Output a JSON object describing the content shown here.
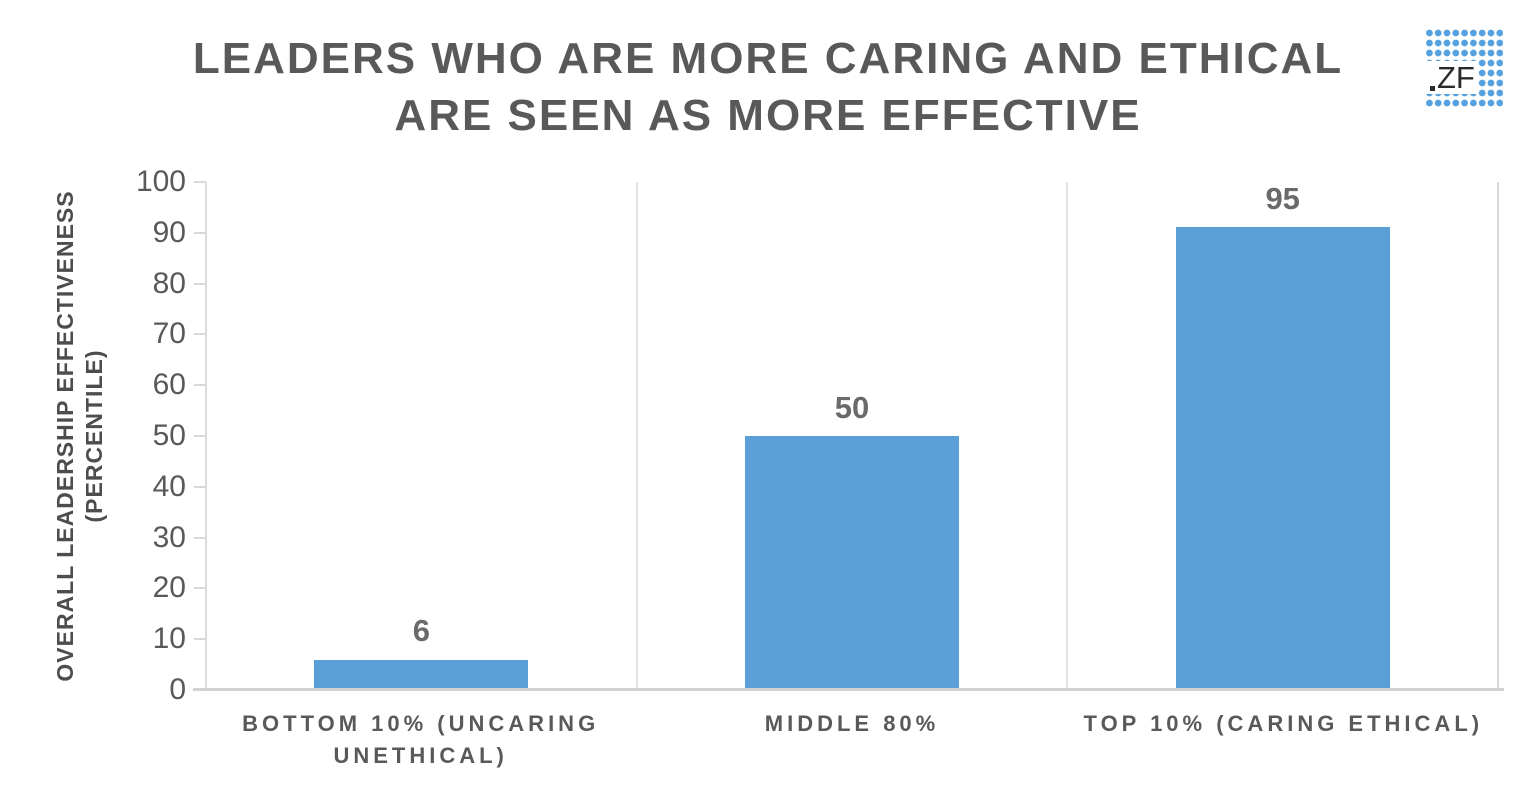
{
  "title": {
    "line1": "LEADERS WHO ARE MORE CARING AND ETHICAL",
    "line2": "ARE SEEN AS MORE EFFECTIVE"
  },
  "logo": {
    "text": "ZF",
    "dot_color": "#55A0DF"
  },
  "y_axis": {
    "title_line1": "OVERALL LEADERSHIP EFFECTIVENESS",
    "title_line2": "(PERCENTILE)"
  },
  "chart_data": {
    "type": "bar",
    "title": "LEADERS WHO ARE MORE CARING AND ETHICAL ARE SEEN AS MORE EFFECTIVE",
    "categories": [
      "BOTTOM 10% (UNCARING UNETHICAL)",
      "MIDDLE 80%",
      "TOP 10% (CARING ETHICAL)"
    ],
    "values": [
      6,
      50,
      95
    ],
    "data_labels": [
      "6",
      "50",
      "95"
    ],
    "xlabel": "",
    "ylabel": "OVERALL LEADERSHIP EFFECTIVENESS (PERCENTILE)",
    "ylim": [
      0,
      100
    ],
    "yticks": [
      "100",
      "90",
      "80",
      "70",
      "60",
      "50",
      "40",
      "30",
      "20",
      "10",
      "0"
    ],
    "bar_color": "#5B9FD8",
    "grid": "vertical category separators only",
    "legend": "none"
  }
}
